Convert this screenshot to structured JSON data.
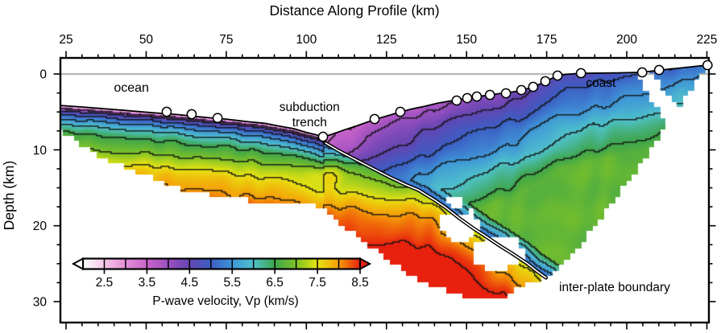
{
  "chart_data": {
    "type": "heatmap",
    "title": "Distance Along Profile (km)",
    "xlabel": "Distance Along Profile (km)",
    "ylabel": "Depth (km)",
    "xlim": [
      23.2,
      227.3
    ],
    "ylim": [
      -2.1,
      32.8
    ],
    "x_major_ticks": [
      25,
      50,
      75,
      100,
      125,
      150,
      175,
      200,
      225
    ],
    "x_minor_step": 5,
    "y_major_ticks": [
      0,
      10,
      20,
      30
    ],
    "y_minor_step": 2.5,
    "grid": false,
    "sea_level_depth_km": 0,
    "sea_level_color": "#8f8f8f",
    "colorbar": {
      "label": "P-wave velocity, Vp (km/s)",
      "ticks": [
        2.5,
        3.5,
        4.5,
        5.5,
        6.5,
        7.5,
        8.5
      ],
      "range": [
        2.0,
        8.5
      ],
      "segment_step": 0.5,
      "stops": [
        {
          "v": 2.0,
          "color": "#ffffff"
        },
        {
          "v": 2.5,
          "color": "#f4c7e7"
        },
        {
          "v": 3.0,
          "color": "#e18fd6"
        },
        {
          "v": 3.5,
          "color": "#c964c9"
        },
        {
          "v": 4.0,
          "color": "#9c50c0"
        },
        {
          "v": 4.5,
          "color": "#6346b2"
        },
        {
          "v": 5.0,
          "color": "#3c5ec4"
        },
        {
          "v": 5.5,
          "color": "#3f95d7"
        },
        {
          "v": 6.0,
          "color": "#4fc2cb"
        },
        {
          "v": 6.5,
          "color": "#3ea54b"
        },
        {
          "v": 7.0,
          "color": "#7fc327"
        },
        {
          "v": 7.5,
          "color": "#e8e311"
        },
        {
          "v": 8.0,
          "color": "#f59c07"
        },
        {
          "v": 8.5,
          "color": "#e8200e"
        }
      ]
    },
    "annotations": {
      "ocean": {
        "text": "ocean",
        "x_km": 45.4,
        "depth_km": 2.35
      },
      "trench": {
        "line1": "subduction",
        "line2": "trench",
        "x_km": 101.0,
        "depth1_km": 4.85,
        "depth2_km": 6.9
      },
      "coast": {
        "text": "coast",
        "x_km": 191.9,
        "depth_km": 1.7
      },
      "interplate": {
        "text": "inter-plate boundary",
        "x_km": 196.2,
        "depth_km": 28.6
      }
    },
    "stations_km": [
      [
        56.4,
        4.98
      ],
      [
        64.2,
        5.3
      ],
      [
        72.3,
        5.8
      ],
      [
        105.2,
        8.27
      ],
      [
        121.3,
        5.94
      ],
      [
        129.3,
        4.98
      ],
      [
        146.9,
        3.5
      ],
      [
        150.2,
        3.18
      ],
      [
        153.2,
        2.97
      ],
      [
        157.3,
        2.76
      ],
      [
        162.3,
        2.54
      ],
      [
        167.1,
        2.12
      ],
      [
        170.8,
        1.7
      ],
      [
        174.6,
        0.95
      ],
      [
        178.4,
        0.21
      ],
      [
        185.7,
        -0.11
      ],
      [
        204.8,
        -0.21
      ],
      [
        210.1,
        -0.53
      ],
      [
        225.2,
        -1.17
      ]
    ],
    "seafloor_km": [
      [
        23.2,
        4.15
      ],
      [
        30,
        4.35
      ],
      [
        42,
        4.75
      ],
      [
        52,
        5.1
      ],
      [
        60,
        5.35
      ],
      [
        68,
        5.7
      ],
      [
        75,
        5.95
      ],
      [
        82,
        6.3
      ],
      [
        87,
        6.5
      ],
      [
        92,
        6.9
      ],
      [
        96,
        7.2
      ],
      [
        100,
        7.7
      ],
      [
        103,
        8.0
      ],
      [
        105.3,
        8.3
      ]
    ],
    "topography_km": [
      [
        105.3,
        8.3
      ],
      [
        109,
        7.8
      ],
      [
        112,
        7.35
      ],
      [
        116,
        6.8
      ],
      [
        121.3,
        6.0
      ],
      [
        125,
        5.55
      ],
      [
        129.3,
        5.0
      ],
      [
        133,
        4.6
      ],
      [
        137,
        4.25
      ],
      [
        141,
        3.85
      ],
      [
        145,
        3.55
      ],
      [
        148,
        3.35
      ],
      [
        151,
        3.15
      ],
      [
        154,
        2.95
      ],
      [
        157,
        2.78
      ],
      [
        160,
        2.6
      ],
      [
        163,
        2.45
      ],
      [
        165.5,
        2.3
      ],
      [
        168,
        2.05
      ],
      [
        170.8,
        1.72
      ],
      [
        172.8,
        1.35
      ],
      [
        174.6,
        0.98
      ],
      [
        176.5,
        0.6
      ],
      [
        178.4,
        0.22
      ],
      [
        181,
        0.05
      ],
      [
        185.7,
        -0.08
      ],
      [
        197,
        -0.15
      ],
      [
        204.8,
        -0.22
      ],
      [
        210.1,
        -0.5
      ],
      [
        218,
        -0.85
      ],
      [
        225.3,
        -1.18
      ]
    ],
    "interplate_boundary_km": [
      [
        106,
        9.1
      ],
      [
        110,
        10.1
      ],
      [
        115,
        11.2
      ],
      [
        120,
        12.3
      ],
      [
        126,
        13.6
      ],
      [
        131,
        14.6
      ],
      [
        135,
        15.3
      ],
      [
        140,
        16.6
      ],
      [
        143.5,
        17.6
      ],
      [
        147.7,
        19.0
      ],
      [
        152,
        20.3
      ],
      [
        156,
        21.4
      ],
      [
        160.2,
        22.6
      ],
      [
        164,
        23.6
      ],
      [
        169,
        25.0
      ],
      [
        172,
        26.0
      ],
      [
        174.8,
        26.85
      ]
    ],
    "coverage_bottom_km": [
      [
        23.2,
        7.5
      ],
      [
        25.8,
        8.1
      ],
      [
        29.5,
        9.3
      ],
      [
        34.6,
        10.6
      ],
      [
        39.6,
        11.7
      ],
      [
        45.9,
        12.7
      ],
      [
        53.4,
        14.0
      ],
      [
        62.2,
        15.3
      ],
      [
        71,
        16.0
      ],
      [
        79.8,
        16.5
      ],
      [
        88.6,
        16.9
      ],
      [
        96.2,
        17.0
      ],
      [
        101.2,
        17.2
      ],
      [
        105,
        17.6
      ],
      [
        108.7,
        18.9
      ],
      [
        113.8,
        20.8
      ],
      [
        118.8,
        22.3
      ],
      [
        123.8,
        24.0
      ],
      [
        128.8,
        25.5
      ],
      [
        133.9,
        26.8
      ],
      [
        138.9,
        28.0
      ],
      [
        143.9,
        28.6
      ],
      [
        149,
        29.3
      ],
      [
        155.2,
        29.8
      ],
      [
        159,
        29.6
      ],
      [
        162.8,
        29.1
      ],
      [
        166.6,
        28.0
      ],
      [
        170.4,
        27.3
      ],
      [
        173.4,
        26.9
      ],
      [
        176.6,
        26.1
      ],
      [
        180.4,
        24.9
      ],
      [
        184.2,
        23.1
      ],
      [
        188,
        21.2
      ],
      [
        191.7,
        19.1
      ],
      [
        195.5,
        17.0
      ],
      [
        199.3,
        14.8
      ],
      [
        203,
        12.5
      ],
      [
        206.8,
        10.2
      ],
      [
        210.6,
        7.7
      ],
      [
        214.4,
        5.3
      ],
      [
        218.1,
        3.0
      ],
      [
        221.2,
        1.2
      ],
      [
        223.7,
        -0.2
      ],
      [
        225.5,
        -1.0
      ]
    ],
    "coverage_holes_km": [
      [
        [
          142.2,
          18.4
        ],
        [
          152.2,
          18.0
        ],
        [
          154.7,
          20.5
        ],
        [
          149.2,
          22.3
        ],
        [
          142.7,
          21.3
        ]
      ],
      [
        [
          151.4,
          22.0
        ],
        [
          165.8,
          21.3
        ],
        [
          169.1,
          24.4
        ],
        [
          158.8,
          26.1
        ],
        [
          151.7,
          24.5
        ]
      ],
      [
        [
          144.0,
          16.3
        ],
        [
          148.7,
          15.9
        ],
        [
          149.7,
          17.3
        ],
        [
          145.0,
          17.7
        ]
      ],
      [
        [
          203.2,
          -0.6
        ],
        [
          206.3,
          -0.6
        ],
        [
          216.8,
          4.7
        ],
        [
          217.6,
          6.9
        ],
        [
          213.0,
          6.9
        ],
        [
          205.3,
          2.0
        ]
      ]
    ],
    "velocity_model": {
      "slab_profile": [
        [
          0,
          2.6
        ],
        [
          0.2,
          3.0
        ],
        [
          0.45,
          4.0
        ],
        [
          0.7,
          4.55
        ],
        [
          1.1,
          4.95
        ],
        [
          1.8,
          5.5
        ],
        [
          2.6,
          6.0
        ],
        [
          3.6,
          6.5
        ],
        [
          5.0,
          6.9
        ],
        [
          6.5,
          7.3
        ],
        [
          8.0,
          7.7
        ],
        [
          9.6,
          8.0
        ],
        [
          11.5,
          8.3
        ],
        [
          13.5,
          8.55
        ],
        [
          16,
          8.7
        ]
      ],
      "trench_x_km": 105.3,
      "upper_plate": {
        "v0": 3.35,
        "dvdx": 0.016,
        "dvdz": 0.18,
        "vmax": 6.78,
        "channel_h": 2.8,
        "channel_v0": 5.05,
        "channel_grad": 0.5
      },
      "subducted_offset": {
        "base": 1.5,
        "grad": 0.16,
        "max": 6.5,
        "x_ref": 107
      },
      "anomaly_blob": {
        "x_km": 106.5,
        "depth_km": 13.2,
        "amp": 0.5,
        "sx2": 50,
        "sd2": 2.0
      },
      "contour_interval": 0.5,
      "contour_min": 3.5
    }
  }
}
